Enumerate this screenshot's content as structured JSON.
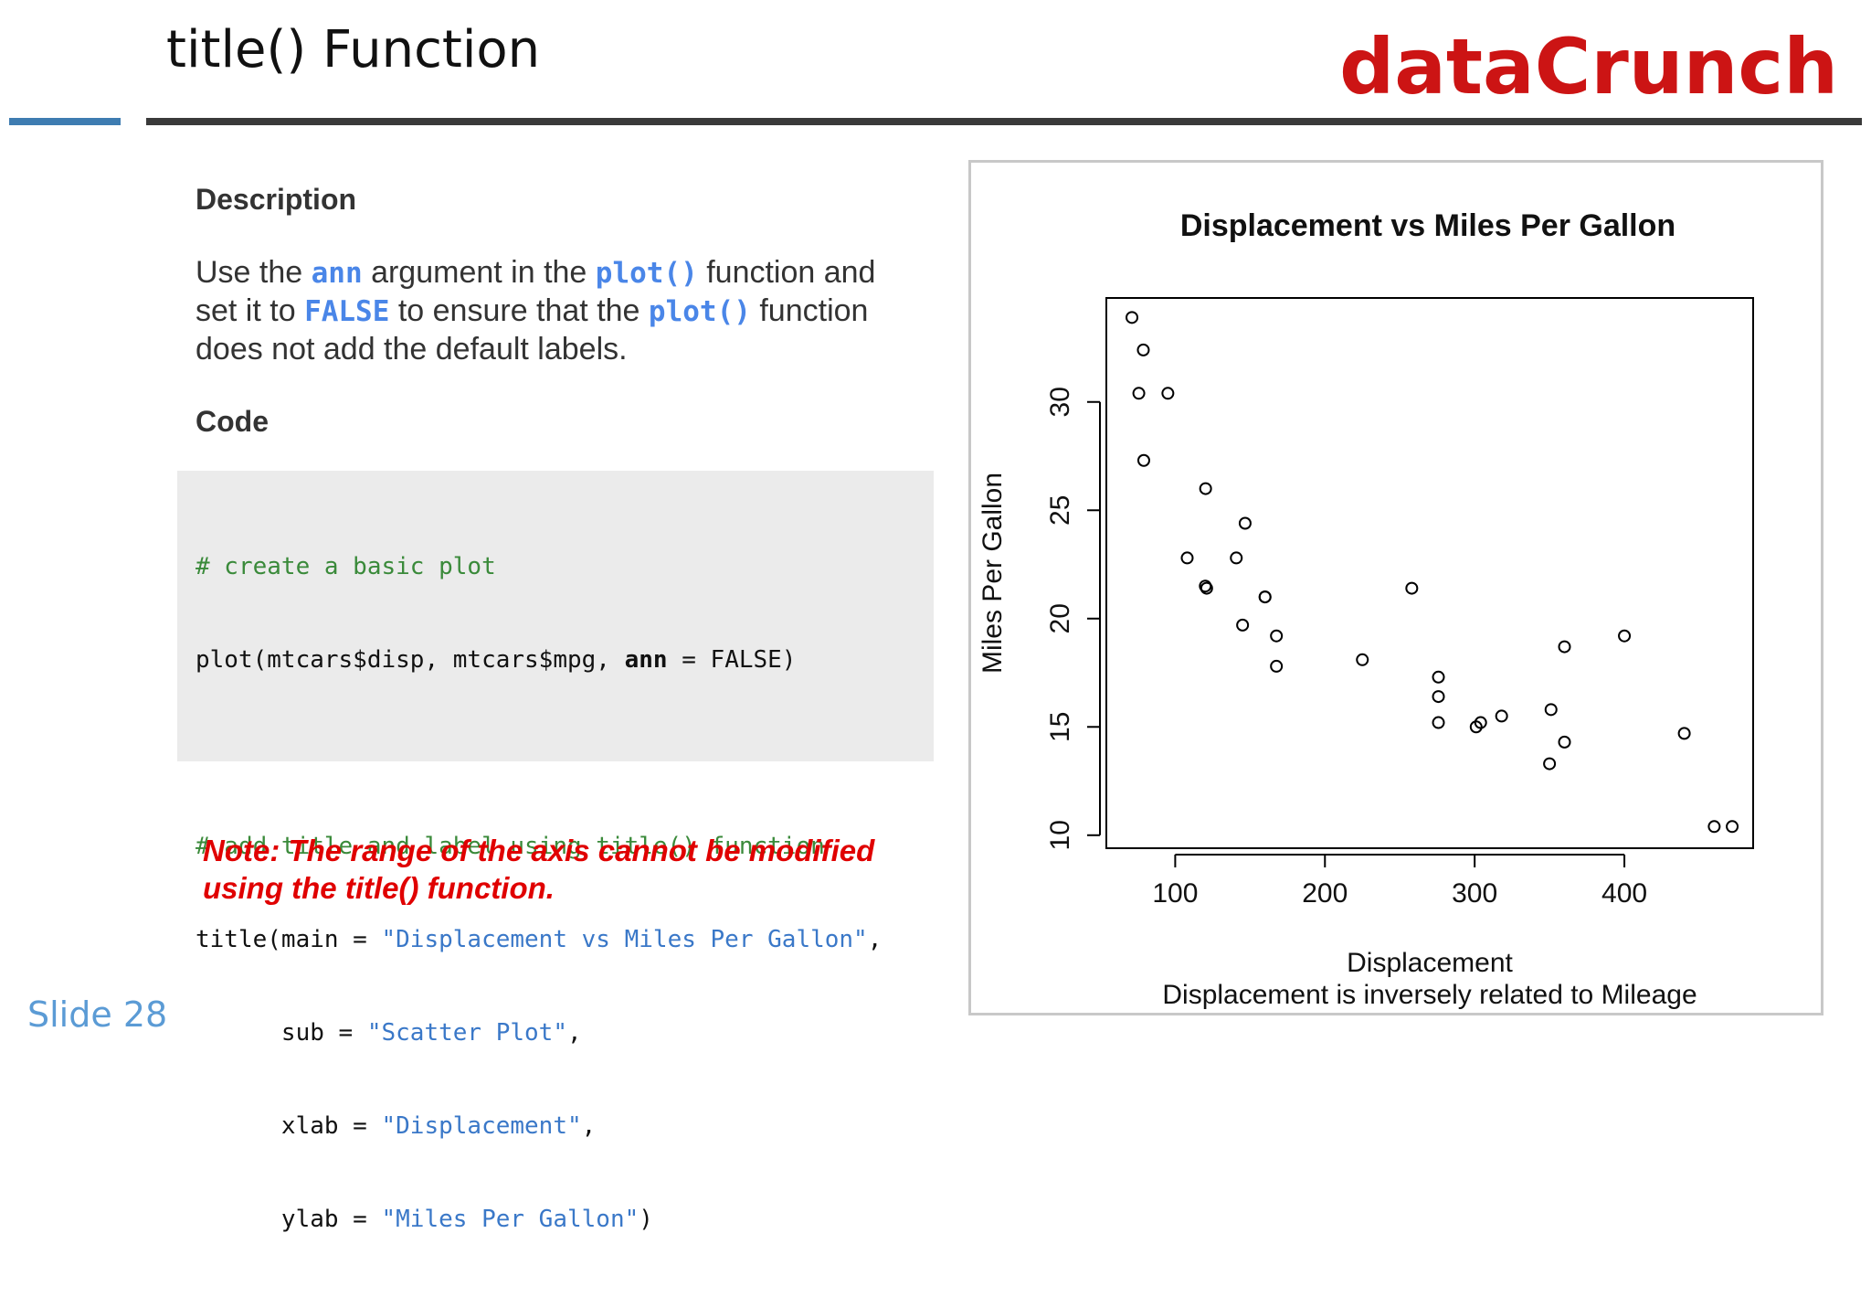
{
  "header": {
    "title": "title() Function",
    "brand": "dataCrunch",
    "brand_color": "#cc1414",
    "accent_color": "#3e7cb1"
  },
  "description": {
    "heading": "Description",
    "line1_pre": "Use the ",
    "line1_kw1": "ann",
    "line1_mid": " argument in the ",
    "line1_kw2": "plot()",
    "line1_post": " function and",
    "line2_pre": "set it to ",
    "line2_kw1": "FALSE",
    "line2_mid": " to ensure that the ",
    "line2_kw2": "plot()",
    "line2_post": " function",
    "line3": "does not add the default labels."
  },
  "code": {
    "heading": "Code",
    "l1_comment": "# create a basic plot",
    "l2_pre": "plot(mtcars$disp, mtcars$mpg, ",
    "l2_bold": "ann",
    "l2_post": " = FALSE)",
    "l4_comment": "# add title and label using title() function",
    "l5_pre": "title(main = ",
    "l5_str": "\"Displacement vs Miles Per Gallon\"",
    "l5_post": ",",
    "l6_pre": "      sub = ",
    "l6_str": "\"Scatter Plot\"",
    "l6_post": ",",
    "l7_pre": "      xlab = ",
    "l7_str": "\"Displacement\"",
    "l7_post": ",",
    "l8_pre": "      ylab = ",
    "l8_str": "\"Miles Per Gallon\"",
    "l8_post": ")"
  },
  "note": {
    "line1": "Note: The range of the axis cannot be modified",
    "line2": "using the title() function."
  },
  "footer": {
    "slide_number": "Slide 28"
  },
  "chart_data": {
    "type": "scatter",
    "title": "Displacement vs Miles Per Gallon",
    "xlabel": "Displacement",
    "ylabel": "Miles Per Gallon",
    "subtitle": "Displacement is inversely related to Mileage",
    "xlim": [
      54,
      486
    ],
    "ylim": [
      9.4,
      34.8
    ],
    "xticks": [
      100,
      200,
      300,
      400
    ],
    "yticks": [
      10,
      15,
      20,
      25,
      30
    ],
    "grid": false,
    "points": [
      {
        "x": 160,
        "y": 21.0
      },
      {
        "x": 160,
        "y": 21.0
      },
      {
        "x": 108,
        "y": 22.8
      },
      {
        "x": 258,
        "y": 21.4
      },
      {
        "x": 360,
        "y": 18.7
      },
      {
        "x": 225,
        "y": 18.1
      },
      {
        "x": 360,
        "y": 14.3
      },
      {
        "x": 146.7,
        "y": 24.4
      },
      {
        "x": 140.8,
        "y": 22.8
      },
      {
        "x": 167.6,
        "y": 19.2
      },
      {
        "x": 167.6,
        "y": 17.8
      },
      {
        "x": 275.8,
        "y": 16.4
      },
      {
        "x": 275.8,
        "y": 17.3
      },
      {
        "x": 275.8,
        "y": 15.2
      },
      {
        "x": 472,
        "y": 10.4
      },
      {
        "x": 460,
        "y": 10.4
      },
      {
        "x": 440,
        "y": 14.7
      },
      {
        "x": 78.7,
        "y": 32.4
      },
      {
        "x": 75.7,
        "y": 30.4
      },
      {
        "x": 71.1,
        "y": 33.9
      },
      {
        "x": 120.1,
        "y": 21.5
      },
      {
        "x": 318,
        "y": 15.5
      },
      {
        "x": 304,
        "y": 15.2
      },
      {
        "x": 350,
        "y": 13.3
      },
      {
        "x": 400,
        "y": 19.2
      },
      {
        "x": 79,
        "y": 27.3
      },
      {
        "x": 120.3,
        "y": 26.0
      },
      {
        "x": 95.1,
        "y": 30.4
      },
      {
        "x": 351,
        "y": 15.8
      },
      {
        "x": 145,
        "y": 19.7
      },
      {
        "x": 301,
        "y": 15.0
      },
      {
        "x": 121,
        "y": 21.4
      }
    ]
  }
}
